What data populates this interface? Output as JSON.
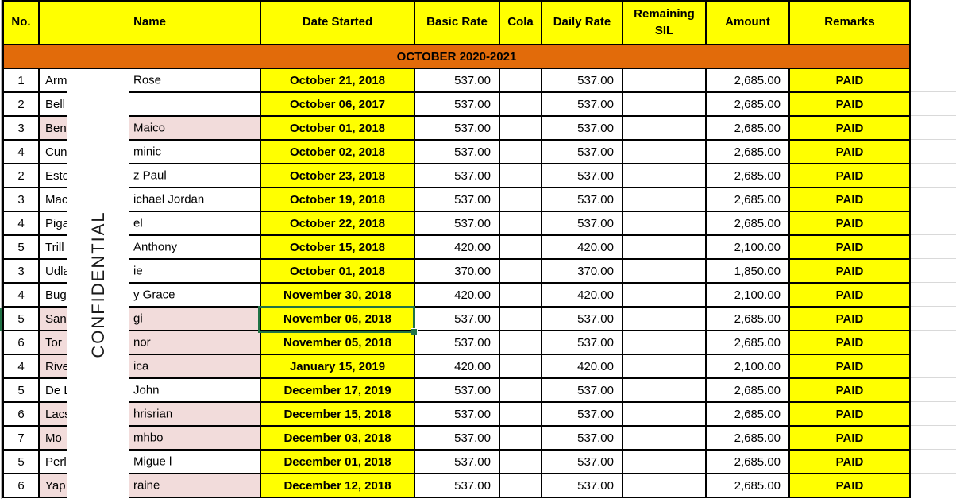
{
  "banner": "OCTOBER 2020-2021",
  "watermark": "CONFIDENTIAL",
  "colors": {
    "header_yellow": "#FFFF00",
    "banner_orange": "#E26B0A",
    "row_pink": "#F2DCDB",
    "selection_green": "#217346"
  },
  "table": {
    "columns": [
      "No.",
      "Name",
      "Date Started",
      "Basic Rate",
      "Cola",
      "Daily Rate",
      "Remaining SIL",
      "Amount",
      "Remarks"
    ],
    "rows": [
      {
        "no": "1",
        "name_left": "Arm",
        "name_right": "Rose",
        "date": "October 21, 2018",
        "basic": "537.00",
        "cola": "",
        "daily": "537.00",
        "sil": "",
        "amount": "2,685.00",
        "remarks": "PAID",
        "pink": false,
        "selected": false
      },
      {
        "no": "2",
        "name_left": "Bell",
        "name_right": "",
        "date": "October 06, 2017",
        "basic": "537.00",
        "cola": "",
        "daily": "537.00",
        "sil": "",
        "amount": "2,685.00",
        "remarks": "PAID",
        "pink": false,
        "selected": false
      },
      {
        "no": "3",
        "name_left": "Ben",
        "name_right": "Maico",
        "date": "October 01, 2018",
        "basic": "537.00",
        "cola": "",
        "daily": "537.00",
        "sil": "",
        "amount": "2,685.00",
        "remarks": "PAID",
        "pink": true,
        "selected": false
      },
      {
        "no": "4",
        "name_left": "Cun",
        "name_right": "minic",
        "date": "October 02, 2018",
        "basic": "537.00",
        "cola": "",
        "daily": "537.00",
        "sil": "",
        "amount": "2,685.00",
        "remarks": "PAID",
        "pink": false,
        "selected": false
      },
      {
        "no": "2",
        "name_left": "Esto",
        "name_right": "z Paul",
        "date": "October 23, 2018",
        "basic": "537.00",
        "cola": "",
        "daily": "537.00",
        "sil": "",
        "amount": "2,685.00",
        "remarks": "PAID",
        "pink": false,
        "selected": false
      },
      {
        "no": "3",
        "name_left": "Mac",
        "name_right": "ichael Jordan",
        "date": "October 19, 2018",
        "basic": "537.00",
        "cola": "",
        "daily": "537.00",
        "sil": "",
        "amount": "2,685.00",
        "remarks": "PAID",
        "pink": false,
        "selected": false
      },
      {
        "no": "4",
        "name_left": "Piga",
        "name_right": "el",
        "date": "October 22, 2018",
        "basic": "537.00",
        "cola": "",
        "daily": "537.00",
        "sil": "",
        "amount": "2,685.00",
        "remarks": "PAID",
        "pink": false,
        "selected": false
      },
      {
        "no": "5",
        "name_left": "Trill",
        "name_right": "Anthony",
        "date": "October 15, 2018",
        "basic": "420.00",
        "cola": "",
        "daily": "420.00",
        "sil": "",
        "amount": "2,100.00",
        "remarks": "PAID",
        "pink": false,
        "selected": false
      },
      {
        "no": "3",
        "name_left": "Udla",
        "name_right": "ie",
        "date": "October 01, 2018",
        "basic": "370.00",
        "cola": "",
        "daily": "370.00",
        "sil": "",
        "amount": "1,850.00",
        "remarks": "PAID",
        "pink": false,
        "selected": false
      },
      {
        "no": "4",
        "name_left": "Bug",
        "name_right": "y Grace",
        "date": "November 30, 2018",
        "basic": "420.00",
        "cola": "",
        "daily": "420.00",
        "sil": "",
        "amount": "2,100.00",
        "remarks": "PAID",
        "pink": false,
        "selected": false
      },
      {
        "no": "5",
        "name_left": "San",
        "name_right": "gi",
        "date": "November 06, 2018",
        "basic": "537.00",
        "cola": "",
        "daily": "537.00",
        "sil": "",
        "amount": "2,685.00",
        "remarks": "PAID",
        "pink": true,
        "selected": true
      },
      {
        "no": "6",
        "name_left": "Tor",
        "name_right": "nor",
        "date": "November 05, 2018",
        "basic": "537.00",
        "cola": "",
        "daily": "537.00",
        "sil": "",
        "amount": "2,685.00",
        "remarks": "PAID",
        "pink": true,
        "selected": false
      },
      {
        "no": "4",
        "name_left": "Rive",
        "name_right": "ica",
        "date": "January 15, 2019",
        "basic": "420.00",
        "cola": "",
        "daily": "420.00",
        "sil": "",
        "amount": "2,100.00",
        "remarks": "PAID",
        "pink": true,
        "selected": false
      },
      {
        "no": "5",
        "name_left": "De L",
        "name_right": "John",
        "date": "December 17, 2019",
        "basic": "537.00",
        "cola": "",
        "daily": "537.00",
        "sil": "",
        "amount": "2,685.00",
        "remarks": "PAID",
        "pink": false,
        "selected": false
      },
      {
        "no": "6",
        "name_left": "Lacs",
        "name_right": "hrisrian",
        "date": "December 15, 2018",
        "basic": "537.00",
        "cola": "",
        "daily": "537.00",
        "sil": "",
        "amount": "2,685.00",
        "remarks": "PAID",
        "pink": true,
        "selected": false
      },
      {
        "no": "7",
        "name_left": "Mo",
        "name_right": "mhbo",
        "date": "December 03, 2018",
        "basic": "537.00",
        "cola": "",
        "daily": "537.00",
        "sil": "",
        "amount": "2,685.00",
        "remarks": "PAID",
        "pink": true,
        "selected": false
      },
      {
        "no": "5",
        "name_left": "Perl",
        "name_right": "Migue l",
        "date": "December 01, 2018",
        "basic": "537.00",
        "cola": "",
        "daily": "537.00",
        "sil": "",
        "amount": "2,685.00",
        "remarks": "PAID",
        "pink": false,
        "selected": false
      },
      {
        "no": "6",
        "name_left": "Yap",
        "name_right": "raine",
        "date": "December 12, 2018",
        "basic": "537.00",
        "cola": "",
        "daily": "537.00",
        "sil": "",
        "amount": "2,685.00",
        "remarks": "PAID",
        "pink": true,
        "selected": false
      }
    ]
  }
}
